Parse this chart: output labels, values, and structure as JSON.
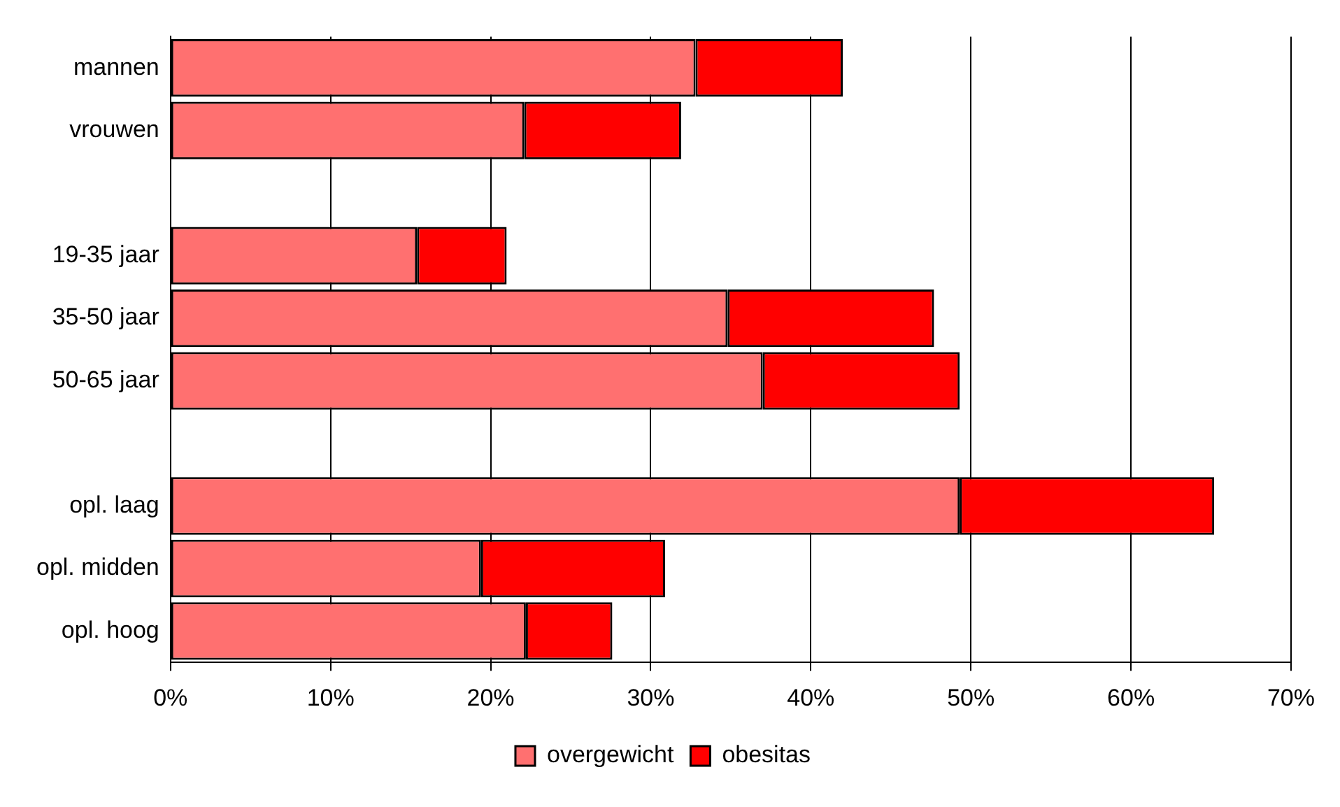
{
  "chart_data": {
    "type": "bar",
    "orientation": "horizontal",
    "stacked": true,
    "categories": [
      "mannen",
      "vrouwen",
      null,
      "19-35 jaar",
      "35-50 jaar",
      "50-65 jaar",
      null,
      "opl. laag",
      "opl. midden",
      "opl. hoog"
    ],
    "series": [
      {
        "name": "overgewicht",
        "color": "#ff7070",
        "values": [
          32.8,
          22.1,
          null,
          15.4,
          34.8,
          37.0,
          null,
          49.3,
          19.4,
          22.2
        ]
      },
      {
        "name": "obesitas",
        "color": "#ff0000",
        "values": [
          9.2,
          9.8,
          null,
          5.6,
          12.9,
          12.3,
          null,
          15.9,
          11.5,
          5.4
        ]
      }
    ],
    "xlim": [
      0,
      70
    ],
    "xticks": [
      {
        "value": 0,
        "label": "0%"
      },
      {
        "value": 10,
        "label": "10%"
      },
      {
        "value": 20,
        "label": "20%"
      },
      {
        "value": 30,
        "label": "30%"
      },
      {
        "value": 40,
        "label": "40%"
      },
      {
        "value": 50,
        "label": "50%"
      },
      {
        "value": 60,
        "label": "60%"
      },
      {
        "value": 70,
        "label": "70%"
      }
    ],
    "grid": "x",
    "legend": "bottom"
  }
}
